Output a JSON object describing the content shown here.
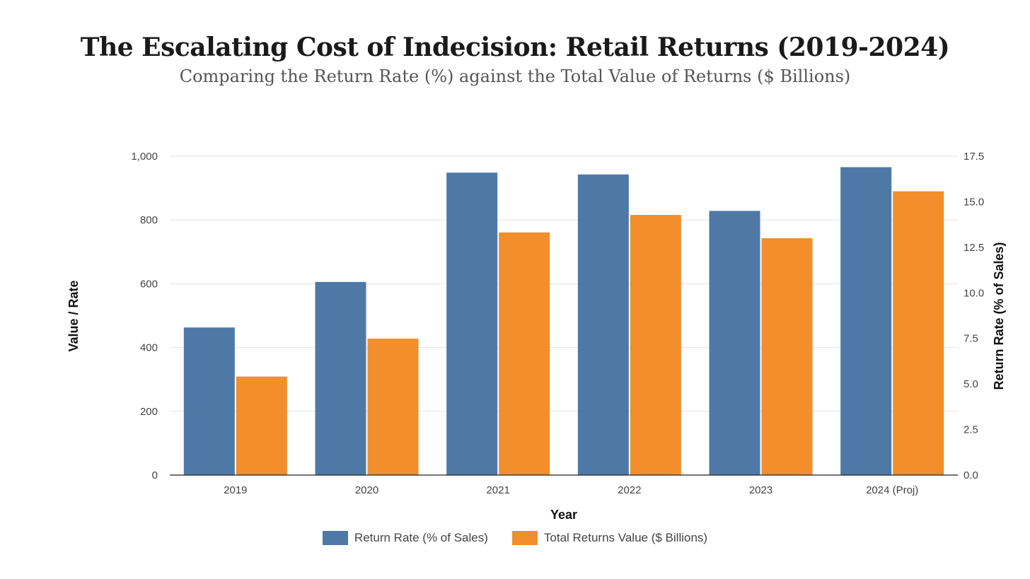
{
  "chart_data": {
    "type": "bar",
    "title": "The Escalating Cost of Indecision: Retail Returns (2019-2024)",
    "subtitle": "Comparing the Return Rate (%) against the Total Value of Returns ($ Billions)",
    "xlabel": "Year",
    "ylabel_left": "Value / Rate",
    "ylabel_right": "Return Rate (% of Sales)",
    "categories": [
      "2019",
      "2020",
      "2021",
      "2022",
      "2023",
      "2024 (Proj)"
    ],
    "ylim_left": [
      0,
      1000
    ],
    "ylim_right": [
      0,
      17.5
    ],
    "left_ticks": [
      0,
      200,
      400,
      600,
      800,
      1000
    ],
    "left_tick_labels": [
      "0",
      "200",
      "400",
      "600",
      "800",
      "1,000"
    ],
    "right_ticks": [
      0,
      2.5,
      5,
      7.5,
      10,
      12.5,
      15,
      17.5
    ],
    "right_tick_labels": [
      "0.0",
      "2.5",
      "5.0",
      "7.5",
      "10.0",
      "12.5",
      "15.0",
      "17.5"
    ],
    "grid": true,
    "legend_position": "bottom",
    "series": [
      {
        "name": "Return Rate (% of Sales)",
        "axis": "right",
        "color": "#4e79a7",
        "values": [
          8.1,
          10.6,
          16.6,
          16.5,
          14.5,
          16.9
        ]
      },
      {
        "name": "Total Returns Value ($ Billions)",
        "axis": "left",
        "color": "#f28e2b",
        "values": [
          309,
          428,
          761,
          816,
          743,
          890
        ]
      }
    ]
  }
}
